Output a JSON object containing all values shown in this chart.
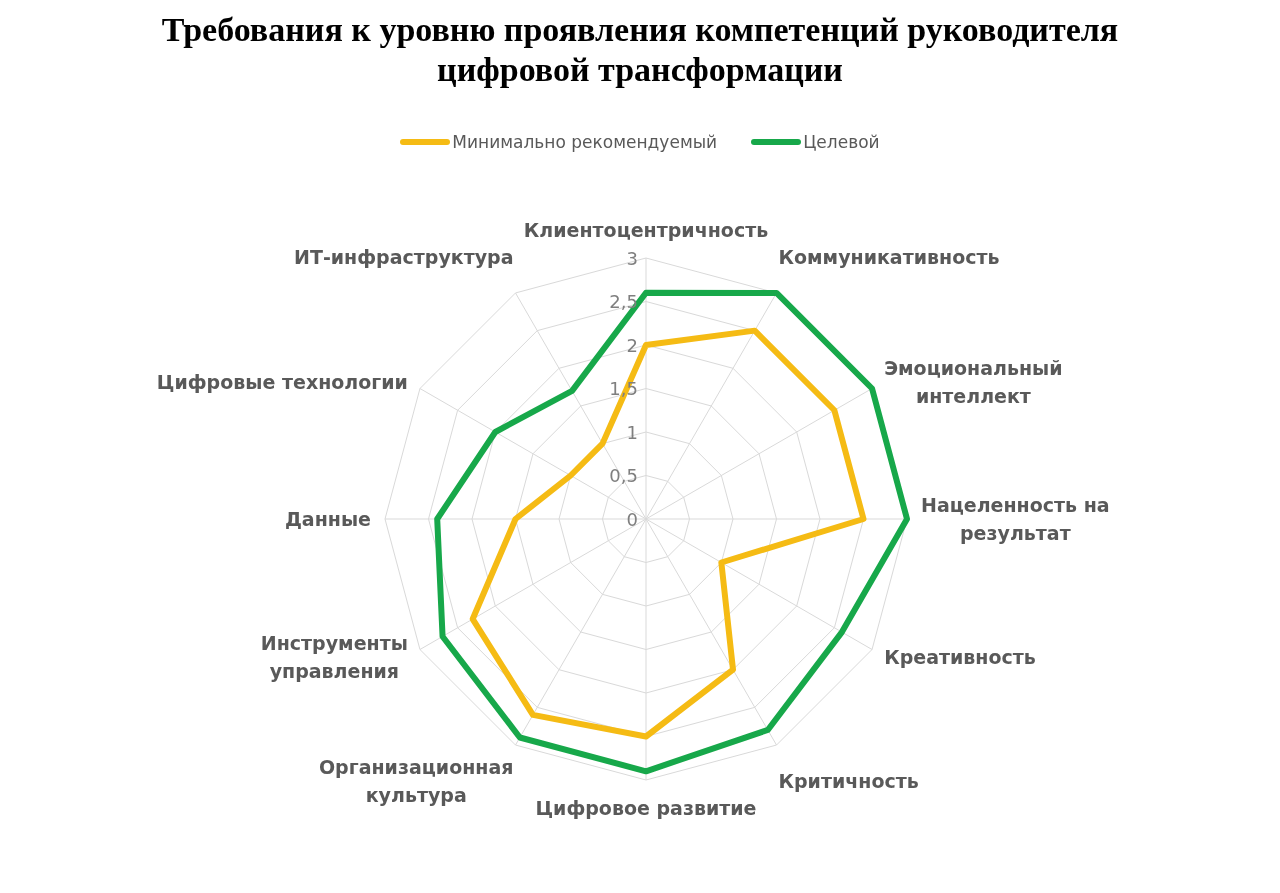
{
  "chart_data": {
    "type": "radar",
    "title": "Требования к уровню проявления компетенций руководителя цифровой трансформации",
    "categories": [
      "Клиентоцентричность",
      "Коммуникативность",
      "Эмоциональный интеллект",
      "Нацеленность на результат",
      "Креативность",
      "Критичность",
      "Цифровое развитие",
      "Организационная культура",
      "Инструменты управления",
      "Данные",
      "Цифровые технологии",
      "ИТ-инфраструктура"
    ],
    "series": [
      {
        "name": "Минимально рекомендуемый",
        "color": "#f5bb14",
        "values": [
          2,
          2.5,
          2.5,
          2.5,
          1,
          2,
          2.5,
          2.6,
          2.3,
          1.5,
          1,
          1
        ]
      },
      {
        "name": "Целевой",
        "color": "#17a84a",
        "values": [
          2.6,
          3,
          3,
          3,
          2.6,
          2.8,
          2.9,
          2.9,
          2.7,
          2.4,
          2,
          1.7
        ]
      }
    ],
    "ylim": [
      0,
      3
    ],
    "yticks": [
      {
        "value": 0,
        "label": "0"
      },
      {
        "value": 0.5,
        "label": "0,5"
      },
      {
        "value": 1,
        "label": "1"
      },
      {
        "value": 1.5,
        "label": "1,5"
      },
      {
        "value": 2,
        "label": "2"
      },
      {
        "value": 2.5,
        "label": "2,5"
      },
      {
        "value": 3,
        "label": "3"
      }
    ],
    "grid": true,
    "legend": "top",
    "marker": "none",
    "line_style": "solid"
  }
}
